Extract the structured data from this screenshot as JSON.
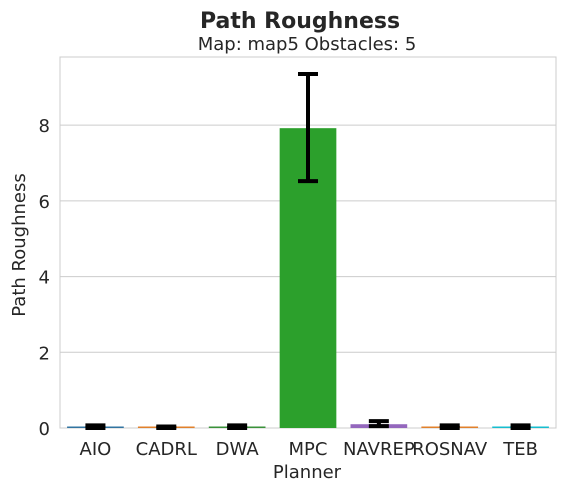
{
  "chart_data": {
    "type": "bar",
    "title": "Path Roughness",
    "subtitle": "Map: map5 Obstacles: 5",
    "xlabel": "Planner",
    "ylabel": "Path Roughness",
    "categories": [
      "AIO",
      "CADRL",
      "DWA",
      "MPC",
      "NAVREP",
      "ROSNAV",
      "TEB"
    ],
    "values": [
      0.02,
      0.01,
      0.02,
      7.92,
      0.1,
      0.02,
      0.02
    ],
    "errors": [
      {
        "low": 0.0,
        "high": 0.07
      },
      {
        "low": 0.0,
        "high": 0.04
      },
      {
        "low": 0.0,
        "high": 0.07
      },
      {
        "low": 6.52,
        "high": 9.35
      },
      {
        "low": 0.05,
        "high": 0.18
      },
      {
        "low": 0.0,
        "high": 0.07
      },
      {
        "low": 0.0,
        "high": 0.07
      }
    ],
    "colors": [
      "#3274a1",
      "#e1812c",
      "#3a923a",
      "#2ca02c",
      "#9467bd",
      "#e1812c",
      "#17becf"
    ],
    "ylim": [
      0,
      9.8
    ],
    "yticks": [
      0,
      2,
      4,
      6,
      8
    ],
    "grid": true,
    "legend": "none"
  }
}
